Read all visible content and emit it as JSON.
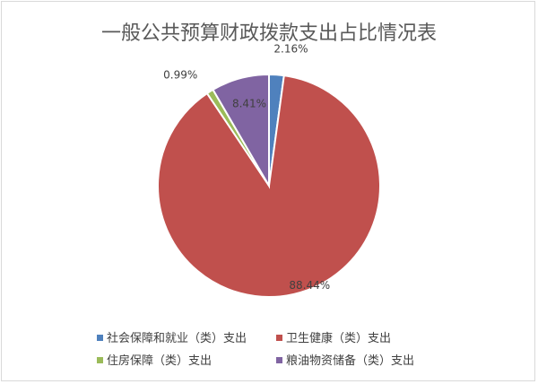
{
  "chart_data": {
    "type": "pie",
    "title": "一般公共预算财政拨款支出占比情况表",
    "categories": [
      "社会保障和就业（类）支出",
      "卫生健康（类）支出",
      "住房保障（类）支出",
      "粮油物资储备（类）支出"
    ],
    "values": [
      2.16,
      88.44,
      0.99,
      8.41
    ],
    "value_labels": [
      "2.16%",
      "88.44%",
      "0.99%",
      "8.41%"
    ],
    "colors": [
      "#4f81bd",
      "#c0504d",
      "#9bbb59",
      "#8064a2"
    ],
    "legend_position": "bottom",
    "start_angle": "12 o'clock, clockwise"
  }
}
